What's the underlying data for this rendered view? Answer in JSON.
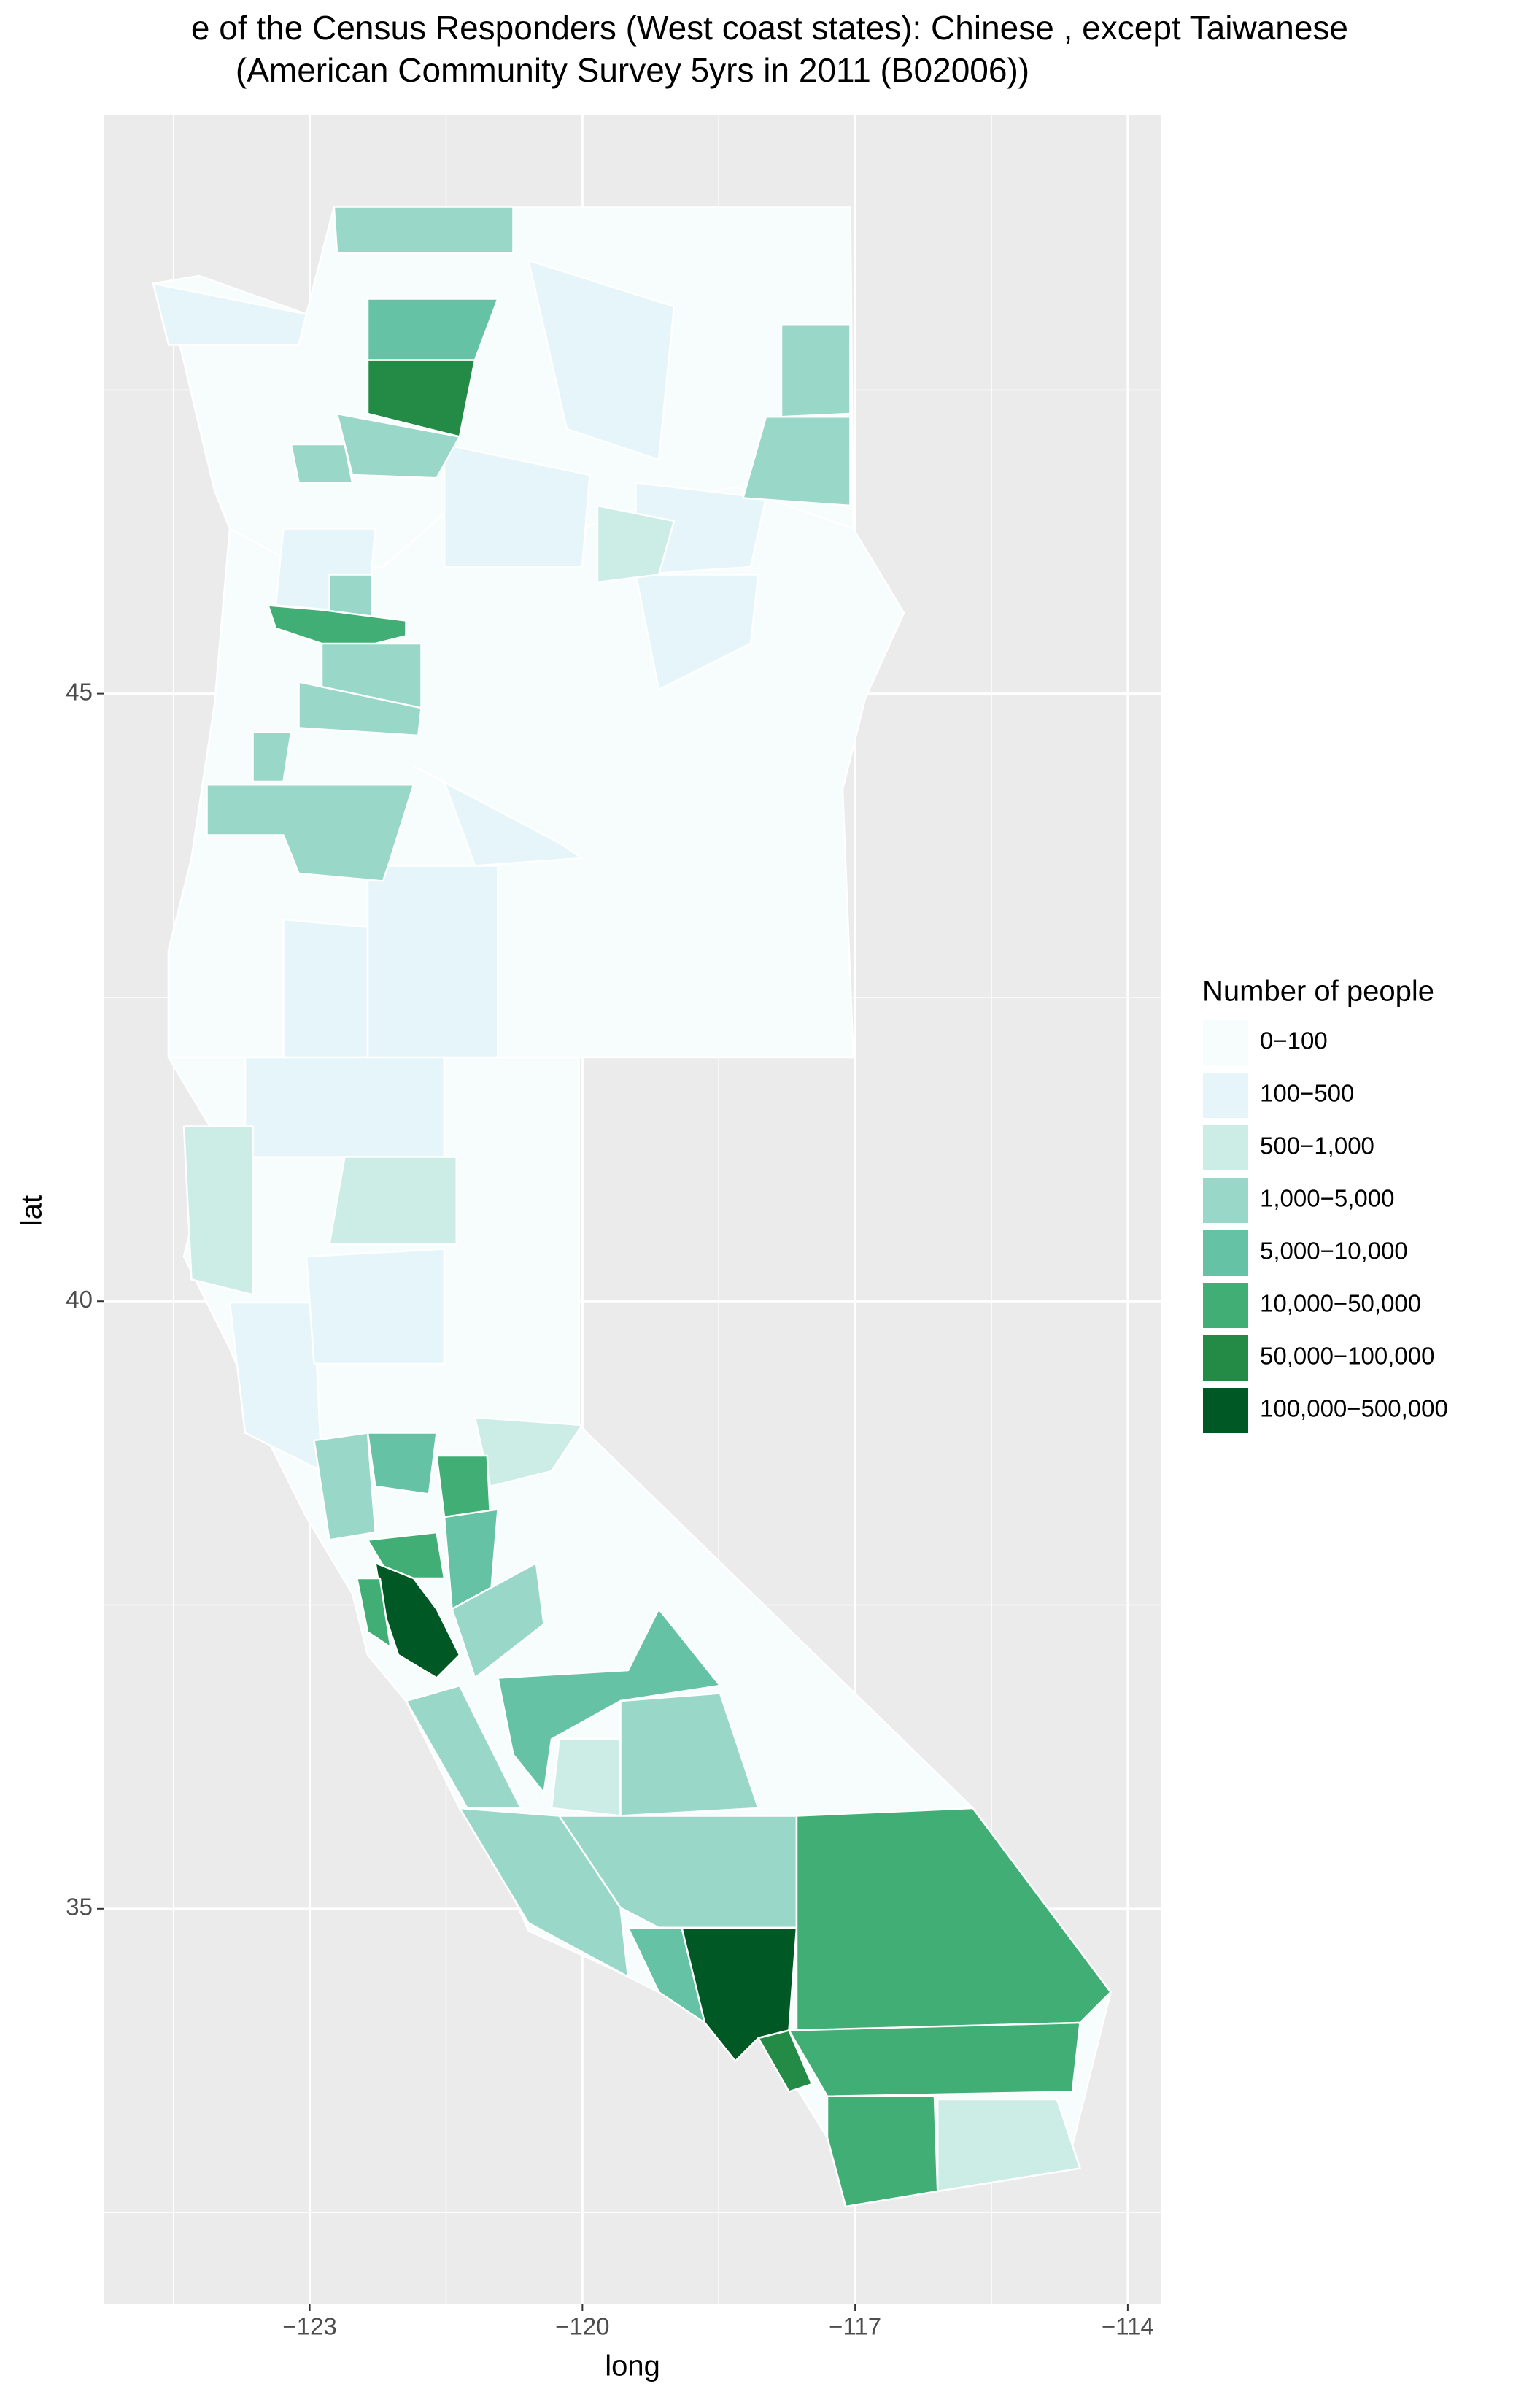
{
  "chart_data": {
    "type": "choropleth",
    "title": "e of the Census Responders (West coast states): Chinese , except Taiwanese",
    "subtitle": "(American Community Survey 5yrs in 2011 (B02006))",
    "x_label": "long",
    "y_label": "lat",
    "xlim": [
      -125.26,
      -113.63
    ],
    "ylim": [
      31.75,
      49.76
    ],
    "xticks": [
      {
        "value": -123,
        "label": "−123"
      },
      {
        "value": -120,
        "label": "−120"
      },
      {
        "value": -117,
        "label": "−117"
      },
      {
        "value": -114,
        "label": "−114"
      }
    ],
    "yticks": [
      35,
      40,
      45
    ],
    "grid": true,
    "legend": {
      "title": "Number of people",
      "categories": [
        "0−100",
        "100−500",
        "500−1,000",
        "1,000−5,000",
        "5,000−10,000",
        "10,000−50,000",
        "50,000−100,000",
        "100,000−500,000"
      ],
      "colors": [
        "#f7fcfd",
        "#e5f5f9",
        "#ccece6",
        "#99d8c9",
        "#66c2a4",
        "#41ae76",
        "#238b45",
        "#005824"
      ]
    },
    "region_bins": [
      0,
      0,
      0,
      1,
      1,
      1,
      1,
      1,
      1,
      1,
      1,
      1,
      1,
      1,
      1,
      6,
      4,
      3,
      3,
      3,
      3,
      3,
      2,
      3,
      5,
      3,
      3,
      3,
      3,
      2,
      2,
      2,
      2,
      2,
      3,
      5,
      4,
      5,
      7,
      5,
      4,
      3,
      4,
      3,
      3,
      3,
      3,
      4,
      7,
      6,
      5,
      5,
      5
    ]
  }
}
